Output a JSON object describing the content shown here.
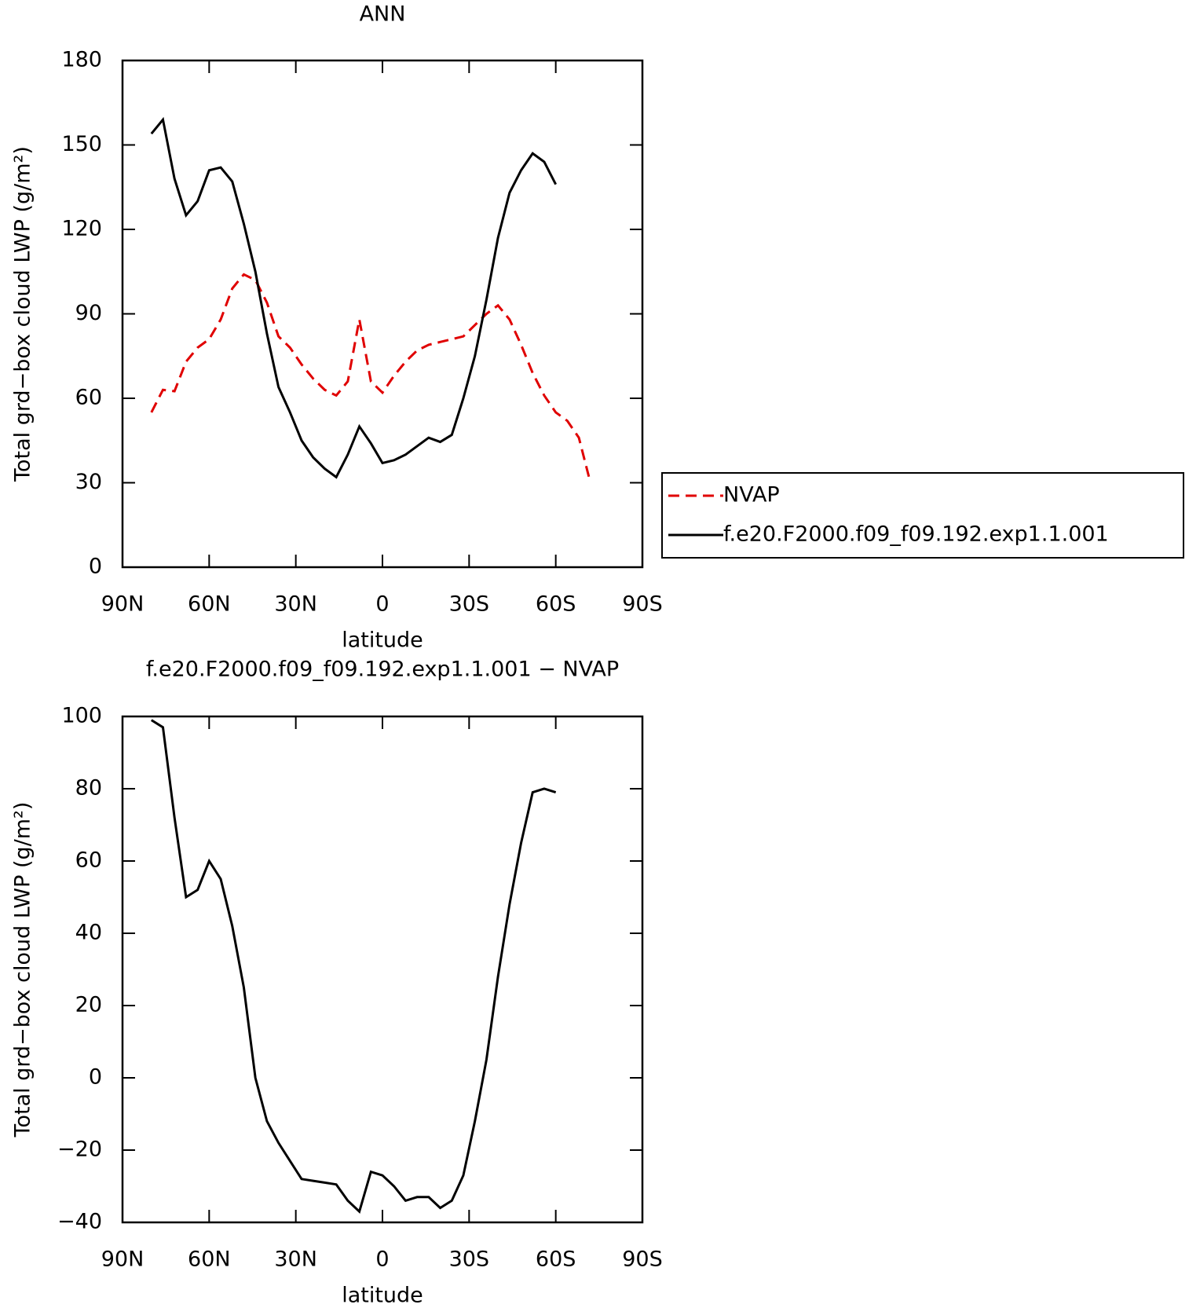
{
  "chart_data": [
    {
      "type": "line",
      "title": "ANN",
      "xlabel": "latitude",
      "ylabel": "Total grd−box cloud LWP (g/m²)",
      "x": [
        80,
        76,
        72,
        68,
        64,
        60,
        56,
        52,
        48,
        44,
        40,
        36,
        32,
        28,
        24,
        20,
        16,
        12,
        8,
        4,
        0,
        -4,
        -8,
        -12,
        -16,
        -20,
        -24,
        -28,
        -32,
        -36,
        -40,
        -44,
        -48,
        -52,
        -56,
        -60,
        -64,
        -68,
        -72
      ],
      "series": [
        {
          "name": "NVAP",
          "color": "#e00000",
          "linestyle": "dashed",
          "values": [
            55,
            63,
            62.5,
            73,
            78,
            81,
            88,
            99,
            104,
            102,
            94,
            82,
            78,
            72,
            67,
            63,
            61,
            66,
            88,
            66,
            62,
            68,
            73,
            77,
            79,
            80,
            81,
            82,
            86,
            90,
            93,
            88,
            79,
            69,
            61,
            55,
            52,
            46,
            30
          ]
        },
        {
          "name": "f.e20.F2000.f09_f09.192.exp1.1.001",
          "color": "#000000",
          "linestyle": "solid",
          "values": [
            154,
            159,
            138,
            125,
            130,
            141,
            142,
            137,
            122,
            105,
            83,
            64,
            55,
            45,
            39,
            35,
            32,
            40,
            50,
            44,
            37,
            38,
            40,
            43,
            46,
            44.5,
            47,
            60,
            75,
            95,
            117,
            133,
            141,
            147,
            144,
            136,
            null,
            null,
            null
          ]
        }
      ],
      "xlim": [
        90,
        -90
      ],
      "xticks": [
        {
          "value": 90,
          "label": "90N"
        },
        {
          "value": 60,
          "label": "60N"
        },
        {
          "value": 30,
          "label": "30N"
        },
        0,
        {
          "value": -30,
          "label": "30S"
        },
        {
          "value": -60,
          "label": "60S"
        },
        {
          "value": -90,
          "label": "90S"
        }
      ],
      "ylim": [
        0,
        180
      ],
      "yticks": [
        0,
        30,
        60,
        90,
        120,
        150,
        180
      ],
      "legend": "right"
    },
    {
      "type": "line",
      "title": "f.e20.F2000.f09_f09.192.exp1.1.001 − NVAP",
      "xlabel": "latitude",
      "ylabel": "Total grd−box cloud LWP (g/m²)",
      "x": [
        80,
        76,
        72,
        68,
        64,
        60,
        56,
        52,
        48,
        44,
        40,
        36,
        32,
        28,
        24,
        20,
        16,
        12,
        8,
        4,
        0,
        -4,
        -8,
        -12,
        -16,
        -20,
        -24,
        -28,
        -32,
        -36,
        -40,
        -44,
        -48,
        -52,
        -56,
        -60
      ],
      "series": [
        {
          "color": "#000000",
          "linestyle": "solid",
          "values": [
            99,
            97,
            72,
            50,
            52,
            60,
            55,
            42,
            25,
            0,
            -12,
            -18,
            -23,
            -28,
            -28.5,
            -29,
            -29.5,
            -34,
            -37,
            -26,
            -27,
            -30,
            -34,
            -33,
            -33,
            -36,
            -34,
            -27,
            -12,
            5,
            28,
            48,
            65,
            79,
            80,
            79
          ]
        }
      ],
      "xlim": [
        90,
        -90
      ],
      "xticks": [
        {
          "value": 90,
          "label": "90N"
        },
        {
          "value": 60,
          "label": "60N"
        },
        {
          "value": 30,
          "label": "30N"
        },
        0,
        {
          "value": -30,
          "label": "30S"
        },
        {
          "value": -60,
          "label": "60S"
        },
        {
          "value": -90,
          "label": "90S"
        }
      ],
      "ylim": [
        -40,
        100
      ],
      "yticks": [
        {
          "value": -40,
          "label": "−40"
        },
        {
          "value": -20,
          "label": "−20"
        },
        0,
        20,
        40,
        60,
        80,
        100
      ]
    }
  ]
}
